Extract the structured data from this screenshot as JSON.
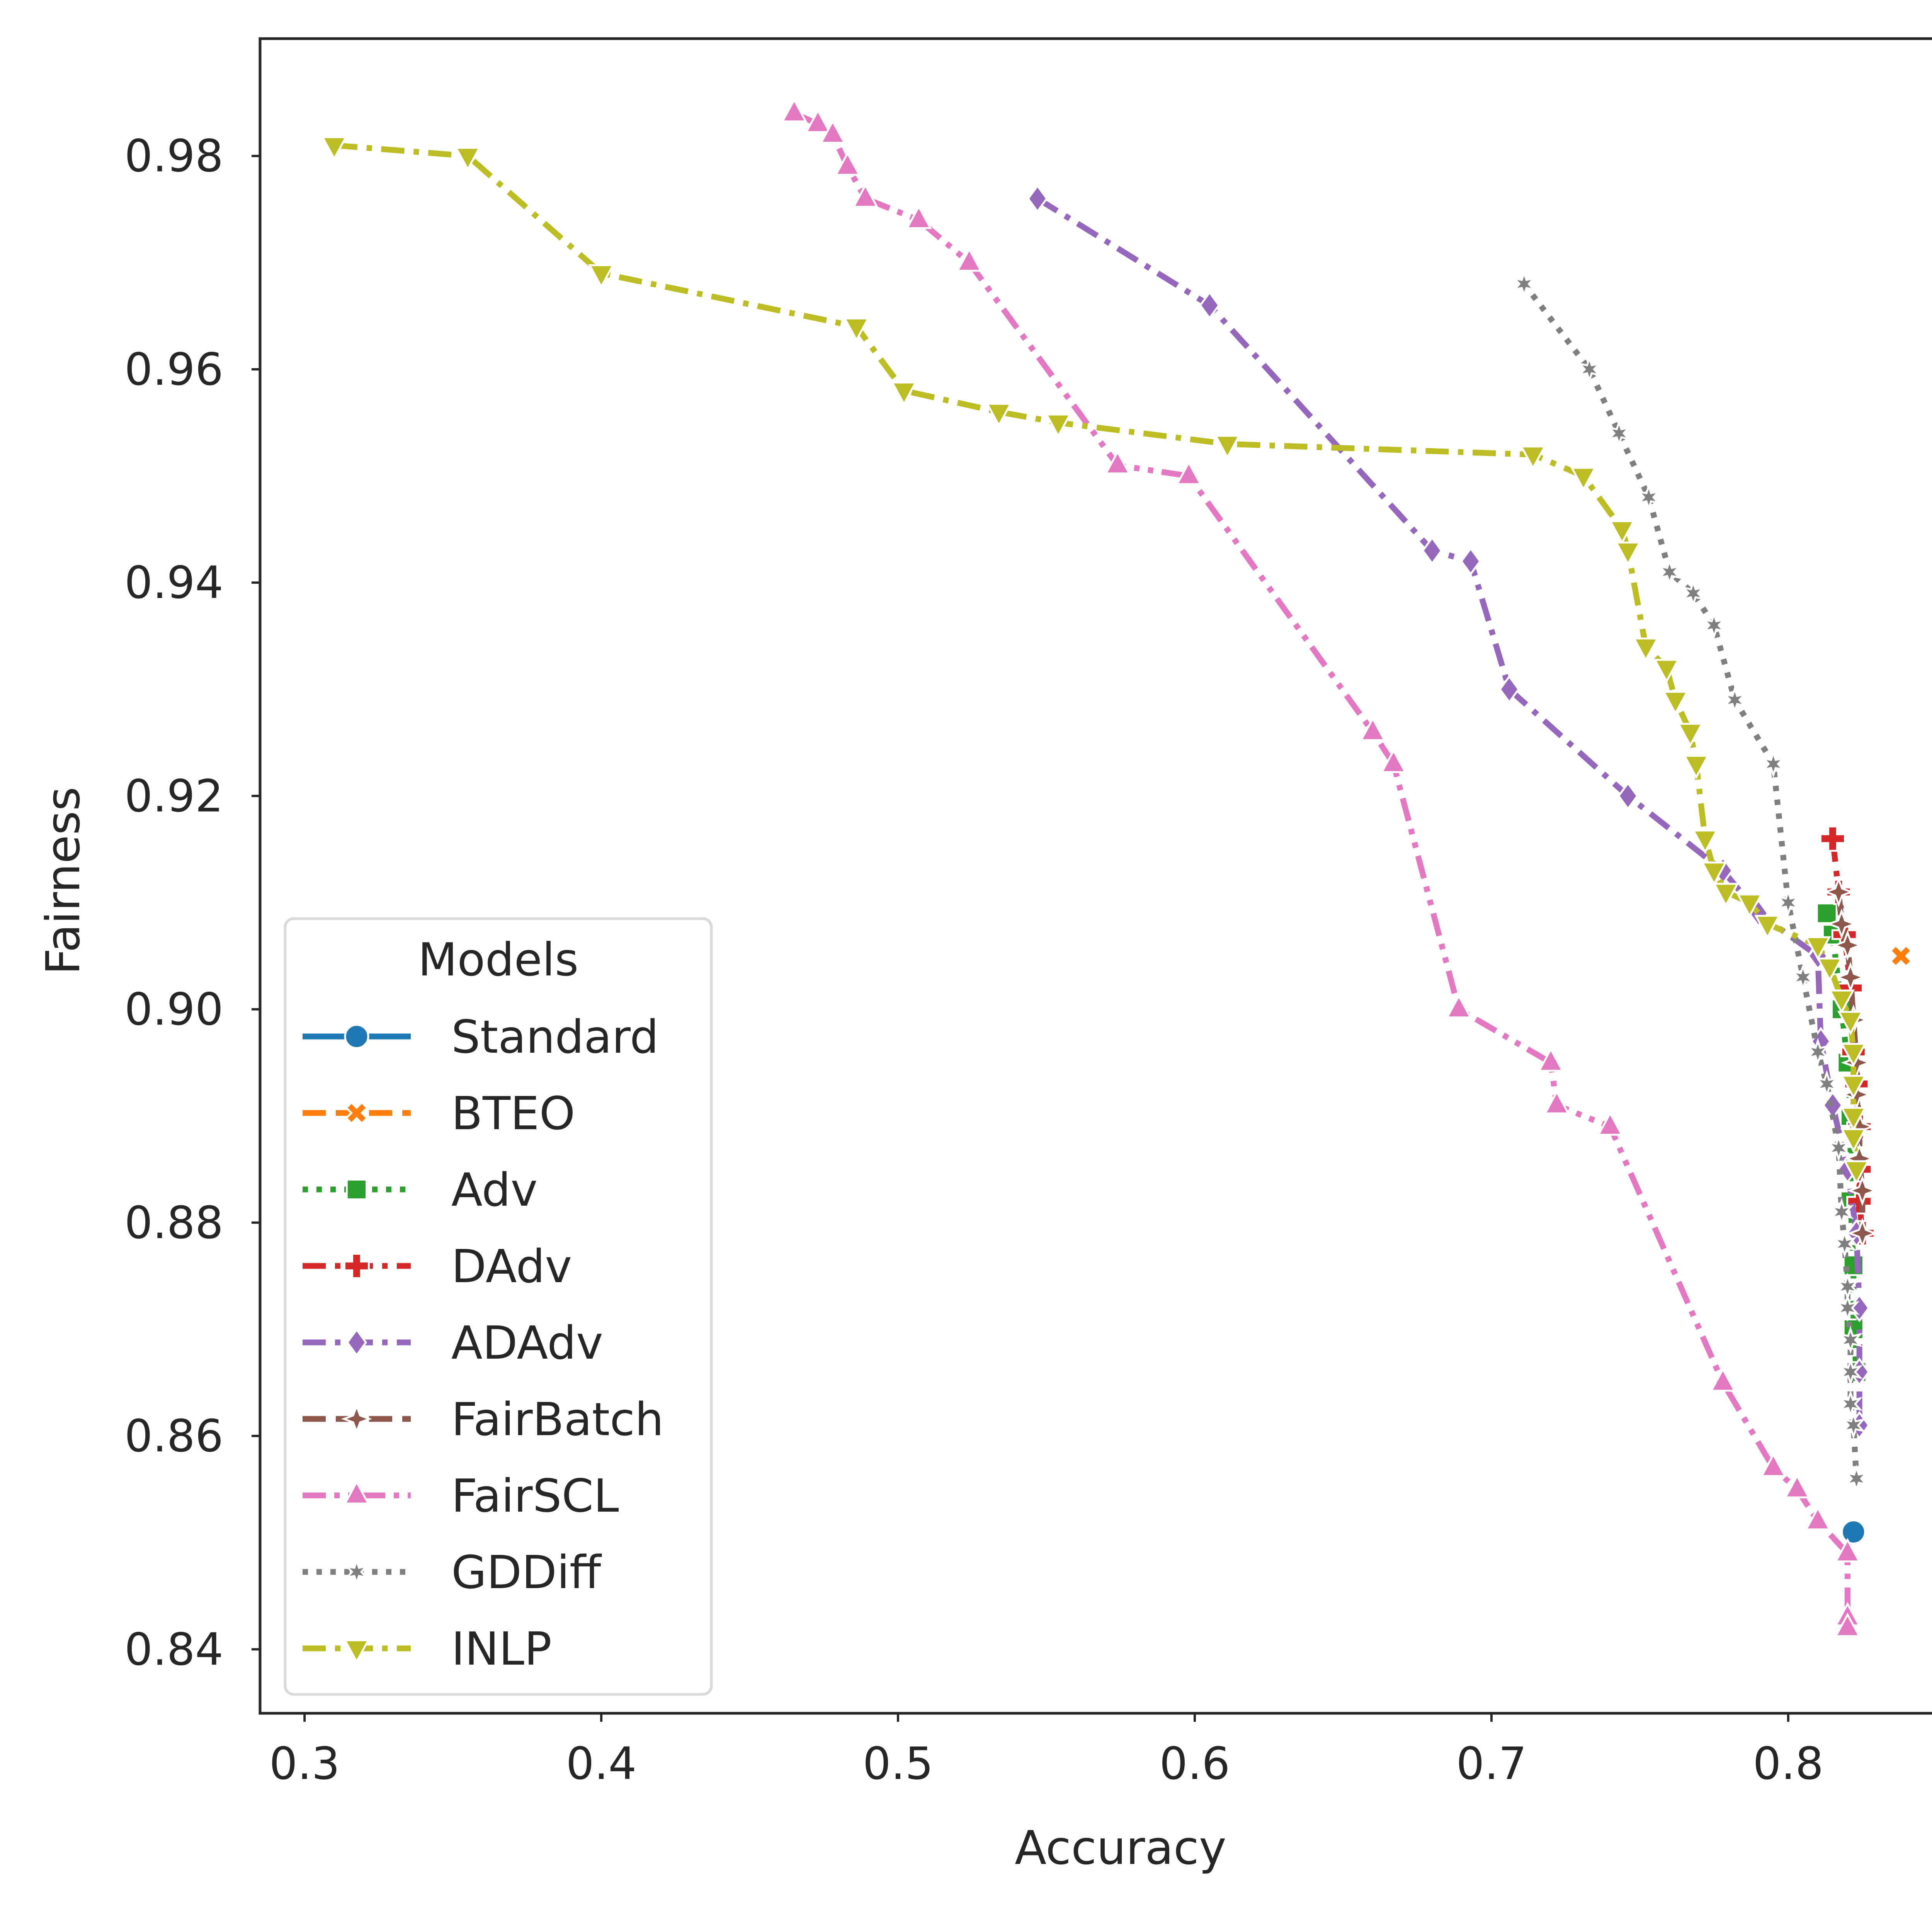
{
  "chart_data": {
    "type": "line",
    "title": "",
    "xlabel": "Accuracy",
    "ylabel": "Fairness",
    "xlim": [
      0.285,
      0.865
    ],
    "ylim": [
      0.834,
      0.991
    ],
    "x_ticks": [
      "0.3",
      "0.4",
      "0.5",
      "0.6",
      "0.7",
      "0.8"
    ],
    "y_ticks": [
      "0.84",
      "0.86",
      "0.88",
      "0.90",
      "0.92",
      "0.94",
      "0.96",
      "0.98"
    ],
    "grid": false,
    "legend": {
      "title": "Models",
      "placement": "lower-left",
      "entries": [
        "Standard",
        "BTEO",
        "Adv",
        "DAdv",
        "ADAdv",
        "FairBatch",
        "FairSCL",
        "GDDiff",
        "INLP"
      ]
    },
    "series": [
      {
        "name": "Standard",
        "color": "#1f77b4",
        "marker": "circle",
        "dash": "solid",
        "points": [
          [
            0.822,
            0.851
          ]
        ]
      },
      {
        "name": "BTEO",
        "color": "#ff7f0e",
        "marker": "x",
        "dash": "dashed",
        "points": [
          [
            0.838,
            0.905
          ]
        ]
      },
      {
        "name": "Adv",
        "color": "#2ca02c",
        "marker": "square",
        "dash": "dotted",
        "points": [
          [
            0.813,
            0.909
          ],
          [
            0.815,
            0.907
          ],
          [
            0.818,
            0.9
          ],
          [
            0.82,
            0.895
          ],
          [
            0.821,
            0.89
          ],
          [
            0.821,
            0.882
          ],
          [
            0.822,
            0.876
          ],
          [
            0.822,
            0.87
          ],
          [
            0.823,
            0.866
          ]
        ]
      },
      {
        "name": "DAdv",
        "color": "#d62728",
        "marker": "plus",
        "dash": "dashdot",
        "points": [
          [
            0.815,
            0.916
          ],
          [
            0.817,
            0.911
          ],
          [
            0.819,
            0.907
          ],
          [
            0.821,
            0.902
          ],
          [
            0.822,
            0.896
          ],
          [
            0.823,
            0.893
          ],
          [
            0.824,
            0.889
          ],
          [
            0.824,
            0.885
          ],
          [
            0.824,
            0.882
          ],
          [
            0.825,
            0.879
          ]
        ]
      },
      {
        "name": "ADAdv",
        "color": "#9467bd",
        "marker": "diamond",
        "dash": "dashdot",
        "points": [
          [
            0.547,
            0.976
          ],
          [
            0.605,
            0.966
          ],
          [
            0.68,
            0.943
          ],
          [
            0.693,
            0.942
          ],
          [
            0.706,
            0.93
          ],
          [
            0.746,
            0.92
          ],
          [
            0.778,
            0.913
          ],
          [
            0.79,
            0.909
          ],
          [
            0.81,
            0.905
          ],
          [
            0.811,
            0.897
          ],
          [
            0.815,
            0.891
          ],
          [
            0.82,
            0.885
          ],
          [
            0.823,
            0.879
          ],
          [
            0.824,
            0.872
          ],
          [
            0.824,
            0.866
          ],
          [
            0.824,
            0.861
          ]
        ]
      },
      {
        "name": "FairBatch",
        "color": "#8c564b",
        "marker": "star4",
        "dash": "dashed",
        "points": [
          [
            0.817,
            0.911
          ],
          [
            0.818,
            0.908
          ],
          [
            0.82,
            0.906
          ],
          [
            0.821,
            0.903
          ],
          [
            0.822,
            0.899
          ],
          [
            0.823,
            0.895
          ],
          [
            0.823,
            0.892
          ],
          [
            0.824,
            0.889
          ],
          [
            0.824,
            0.886
          ],
          [
            0.825,
            0.883
          ],
          [
            0.825,
            0.879
          ]
        ]
      },
      {
        "name": "FairSCL",
        "color": "#e377c2",
        "marker": "triangle-up",
        "dash": "dashdotdot",
        "points": [
          [
            0.465,
            0.984
          ],
          [
            0.473,
            0.983
          ],
          [
            0.478,
            0.982
          ],
          [
            0.483,
            0.979
          ],
          [
            0.489,
            0.976
          ],
          [
            0.507,
            0.974
          ],
          [
            0.524,
            0.97
          ],
          [
            0.574,
            0.951
          ],
          [
            0.598,
            0.95
          ],
          [
            0.66,
            0.926
          ],
          [
            0.667,
            0.923
          ],
          [
            0.689,
            0.9
          ],
          [
            0.72,
            0.895
          ],
          [
            0.722,
            0.891
          ],
          [
            0.74,
            0.889
          ],
          [
            0.778,
            0.865
          ],
          [
            0.795,
            0.857
          ],
          [
            0.803,
            0.855
          ],
          [
            0.81,
            0.852
          ],
          [
            0.82,
            0.849
          ],
          [
            0.82,
            0.843
          ],
          [
            0.82,
            0.842
          ]
        ]
      },
      {
        "name": "GDDiff",
        "color": "#7f7f7f",
        "marker": "star",
        "dash": "dotted",
        "points": [
          [
            0.711,
            0.968
          ],
          [
            0.733,
            0.96
          ],
          [
            0.743,
            0.954
          ],
          [
            0.753,
            0.948
          ],
          [
            0.76,
            0.941
          ],
          [
            0.768,
            0.939
          ],
          [
            0.775,
            0.936
          ],
          [
            0.782,
            0.929
          ],
          [
            0.795,
            0.923
          ],
          [
            0.8,
            0.91
          ],
          [
            0.805,
            0.903
          ],
          [
            0.81,
            0.896
          ],
          [
            0.813,
            0.893
          ],
          [
            0.817,
            0.887
          ],
          [
            0.818,
            0.881
          ],
          [
            0.819,
            0.878
          ],
          [
            0.82,
            0.874
          ],
          [
            0.82,
            0.872
          ],
          [
            0.821,
            0.869
          ],
          [
            0.821,
            0.866
          ],
          [
            0.821,
            0.863
          ],
          [
            0.822,
            0.861
          ],
          [
            0.823,
            0.856
          ]
        ]
      },
      {
        "name": "INLP",
        "color": "#bcbd22",
        "marker": "triangle-down",
        "dash": "dashdot",
        "points": [
          [
            0.31,
            0.981
          ],
          [
            0.355,
            0.98
          ],
          [
            0.4,
            0.969
          ],
          [
            0.486,
            0.964
          ],
          [
            0.502,
            0.958
          ],
          [
            0.534,
            0.956
          ],
          [
            0.554,
            0.955
          ],
          [
            0.611,
            0.953
          ],
          [
            0.714,
            0.952
          ],
          [
            0.731,
            0.95
          ],
          [
            0.744,
            0.945
          ],
          [
            0.746,
            0.943
          ],
          [
            0.752,
            0.934
          ],
          [
            0.759,
            0.932
          ],
          [
            0.762,
            0.929
          ],
          [
            0.767,
            0.926
          ],
          [
            0.769,
            0.923
          ],
          [
            0.772,
            0.916
          ],
          [
            0.775,
            0.913
          ],
          [
            0.779,
            0.911
          ],
          [
            0.787,
            0.91
          ],
          [
            0.793,
            0.908
          ],
          [
            0.81,
            0.906
          ],
          [
            0.814,
            0.904
          ],
          [
            0.818,
            0.901
          ],
          [
            0.821,
            0.899
          ],
          [
            0.822,
            0.896
          ],
          [
            0.822,
            0.893
          ],
          [
            0.822,
            0.89
          ],
          [
            0.822,
            0.888
          ],
          [
            0.823,
            0.885
          ]
        ]
      }
    ]
  }
}
